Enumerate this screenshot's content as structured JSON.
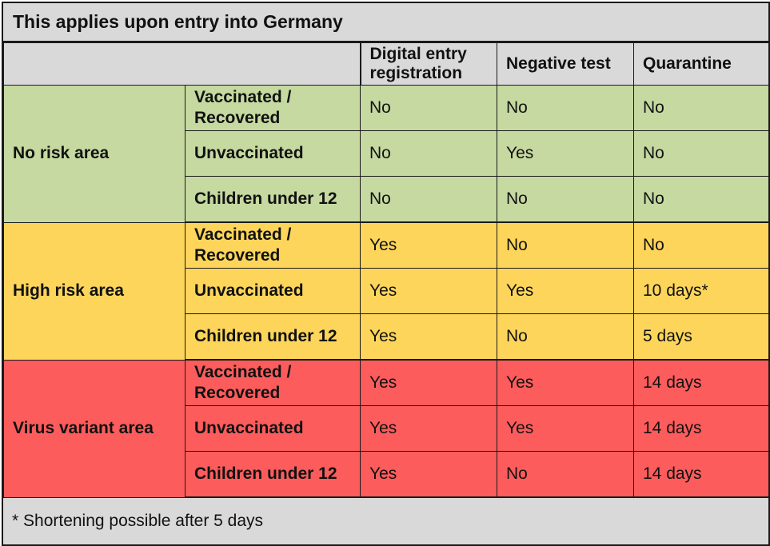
{
  "title": "This applies upon entry into Germany",
  "header": {
    "col_entry": "Digital entry registration",
    "col_test": "Negative test",
    "col_quarantine": "Quarantine"
  },
  "groups": [
    {
      "area": "No risk area",
      "color": "#c5d9a0",
      "rows": [
        {
          "category": "Vaccinated / Recovered",
          "entry": "No",
          "test": "No",
          "quarantine": "No"
        },
        {
          "category": "Unvaccinated",
          "entry": "No",
          "test": "Yes",
          "quarantine": "No"
        },
        {
          "category": "Children under 12",
          "entry": "No",
          "test": "No",
          "quarantine": "No"
        }
      ]
    },
    {
      "area": "High risk area",
      "color": "#fdd55a",
      "rows": [
        {
          "category": "Vaccinated / Recovered",
          "entry": "Yes",
          "test": "No",
          "quarantine": "No"
        },
        {
          "category": "Unvaccinated",
          "entry": "Yes",
          "test": "Yes",
          "quarantine": "10 days*"
        },
        {
          "category": "Children under 12",
          "entry": "Yes",
          "test": "No",
          "quarantine": "5 days"
        }
      ]
    },
    {
      "area": "Virus variant area",
      "color": "#fd5c5c",
      "rows": [
        {
          "category": "Vaccinated / Recovered",
          "entry": "Yes",
          "test": "Yes",
          "quarantine": "14 days"
        },
        {
          "category": "Unvaccinated",
          "entry": "Yes",
          "test": "Yes",
          "quarantine": "14 days"
        },
        {
          "category": "Children under 12",
          "entry": "Yes",
          "test": "No",
          "quarantine": "14 days"
        }
      ]
    }
  ],
  "footnote": "* Shortening possible after 5 days"
}
